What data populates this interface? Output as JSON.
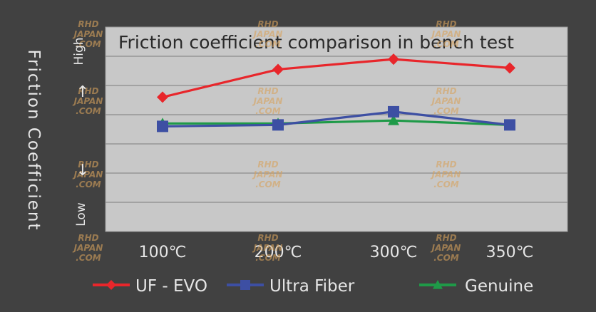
{
  "chart_data": {
    "type": "line",
    "title": "Friction coefficient comparison in bench test",
    "ylabel": "Friction Coefficient",
    "y_high_label": "High",
    "y_low_label": "Low",
    "categories": [
      "100℃",
      "200℃",
      "300℃",
      "350℃"
    ],
    "ylim": [
      0,
      7
    ],
    "grid": true,
    "legend_position": "bottom",
    "series": [
      {
        "name": "UF - EVO",
        "color": "#e8262b",
        "marker": "diamond",
        "values": [
          4.6,
          5.55,
          5.9,
          5.6
        ]
      },
      {
        "name": "Ultra Fiber",
        "color": "#3d4fa3",
        "marker": "square",
        "values": [
          3.6,
          3.65,
          4.1,
          3.65
        ]
      },
      {
        "name": "Genuine",
        "color": "#1f9a48",
        "marker": "triangle",
        "values": [
          3.7,
          3.7,
          3.8,
          3.65
        ]
      }
    ]
  },
  "watermark": {
    "lines": [
      "RHD",
      "JAPAN",
      ".COM"
    ],
    "color": "#d8a25c"
  },
  "colors": {
    "background": "#414141",
    "plot_bg": "#c8c8c8",
    "grid": "#8a8a8a",
    "text": "#e6e6e6"
  }
}
